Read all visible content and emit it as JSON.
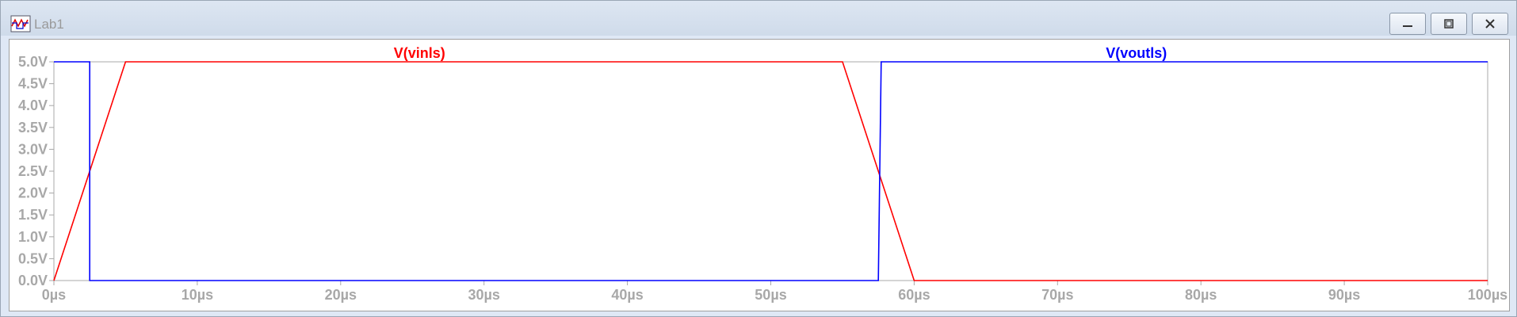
{
  "window": {
    "title": "Lab1",
    "controls": [
      "minimize-button",
      "maximize-button",
      "close-button"
    ]
  },
  "chart_data": {
    "type": "line",
    "xlabel": "",
    "ylabel": "",
    "xlim": [
      0,
      100
    ],
    "ylim": [
      0,
      5
    ],
    "x_ticks": [
      "0µs",
      "10µs",
      "20µs",
      "30µs",
      "40µs",
      "50µs",
      "60µs",
      "70µs",
      "80µs",
      "90µs",
      "100µs"
    ],
    "y_ticks": [
      "0.0V",
      "0.5V",
      "1.0V",
      "1.5V",
      "2.0V",
      "2.5V",
      "3.0V",
      "3.5V",
      "4.0V",
      "4.5V",
      "5.0V"
    ],
    "grid": false,
    "series": [
      {
        "name": "V(vinls)",
        "color": "#ff0000",
        "x": [
          0,
          5,
          55,
          60,
          100
        ],
        "y": [
          0,
          5,
          5,
          0,
          0
        ]
      },
      {
        "name": "V(voutls)",
        "color": "#0000ff",
        "x": [
          0,
          2.5,
          2.5,
          57.5,
          57.7,
          100
        ],
        "y": [
          5,
          5,
          0,
          0,
          5,
          5
        ]
      }
    ]
  }
}
